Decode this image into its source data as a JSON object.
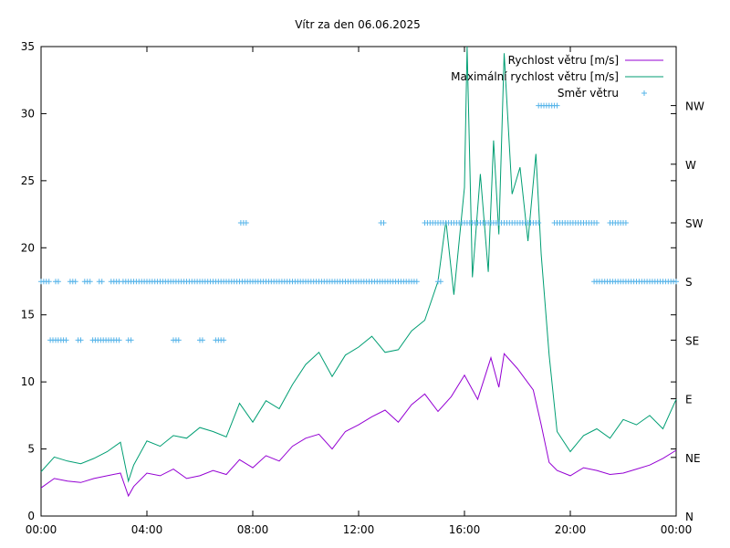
{
  "chart_data": {
    "type": "line",
    "title": "Vítr za den 06.06.2025",
    "xlabel": "",
    "ylabel": "",
    "x_ticks": [
      "00:00",
      "04:00",
      "08:00",
      "12:00",
      "16:00",
      "20:00",
      "00:00"
    ],
    "x_range_hours": [
      0,
      24
    ],
    "y_ticks": [
      "0",
      "5",
      "10",
      "15",
      "20",
      "25",
      "30",
      "35"
    ],
    "ylim": [
      0,
      35
    ],
    "y2_ticks": [
      "N",
      "NE",
      "E",
      "SE",
      "S",
      "SW",
      "W",
      "NW"
    ],
    "grid": false,
    "legend_position": "top-right",
    "series": [
      {
        "name": "Rychlost větru [m/s]",
        "style": "line",
        "color": "#9400d3",
        "x": [
          0,
          0.5,
          1,
          1.5,
          2,
          2.5,
          3,
          3.3,
          3.5,
          4,
          4.5,
          5,
          5.5,
          6,
          6.5,
          7,
          7.5,
          8,
          8.5,
          9,
          9.5,
          10,
          10.5,
          11,
          11.5,
          12,
          12.5,
          13,
          13.5,
          14,
          14.5,
          15,
          15.5,
          16,
          16.5,
          17,
          17.3,
          17.5,
          18,
          18.3,
          18.6,
          18.9,
          19.2,
          19.5,
          20,
          20.5,
          21,
          21.5,
          22,
          22.5,
          23,
          23.5,
          24
        ],
        "y": [
          2.1,
          2.8,
          2.6,
          2.5,
          2.8,
          3.0,
          3.2,
          1.5,
          2.2,
          3.2,
          3.0,
          3.5,
          2.8,
          3.0,
          3.4,
          3.1,
          4.2,
          3.6,
          4.5,
          4.1,
          5.2,
          5.8,
          6.1,
          5.0,
          6.3,
          6.8,
          7.4,
          7.9,
          7.0,
          8.3,
          9.1,
          7.8,
          8.9,
          10.5,
          8.7,
          11.8,
          9.6,
          12.1,
          11.0,
          10.2,
          9.4,
          6.8,
          4.0,
          3.4,
          3.0,
          3.6,
          3.4,
          3.1,
          3.2,
          3.5,
          3.8,
          4.3,
          4.9
        ]
      },
      {
        "name": "Maximální rychlost větru [m/s]",
        "style": "line",
        "color": "#009e73",
        "x": [
          0,
          0.5,
          1,
          1.5,
          2,
          2.5,
          3,
          3.3,
          3.5,
          4,
          4.5,
          5,
          5.5,
          6,
          6.5,
          7,
          7.5,
          8,
          8.5,
          9,
          9.5,
          10,
          10.5,
          11,
          11.5,
          12,
          12.5,
          13,
          13.5,
          14,
          14.5,
          15,
          15.3,
          15.6,
          16,
          16.1,
          16.3,
          16.6,
          16.9,
          17.1,
          17.3,
          17.5,
          17.8,
          18.1,
          18.4,
          18.7,
          18.9,
          19.2,
          19.5,
          20,
          20.5,
          21,
          21.5,
          22,
          22.5,
          23,
          23.5,
          24
        ],
        "y": [
          3.3,
          4.4,
          4.1,
          3.9,
          4.3,
          4.8,
          5.5,
          2.6,
          3.8,
          5.6,
          5.2,
          6.0,
          5.8,
          6.6,
          6.3,
          5.9,
          8.4,
          7.0,
          8.6,
          8.0,
          9.8,
          11.3,
          12.2,
          10.4,
          12.0,
          12.6,
          13.4,
          12.2,
          12.4,
          13.8,
          14.6,
          17.5,
          22.0,
          16.5,
          24.5,
          35.0,
          17.8,
          25.5,
          18.2,
          28.0,
          21.0,
          34.5,
          24.0,
          26.0,
          20.5,
          27.0,
          19.5,
          12.0,
          6.3,
          4.8,
          6.0,
          6.5,
          5.8,
          7.2,
          6.8,
          7.5,
          6.5,
          8.7
        ]
      },
      {
        "name": "Směr větru",
        "style": "points",
        "color": "#56b4e9",
        "runs": [
          {
            "dir": "S",
            "from": 0.0,
            "to": 0.3
          },
          {
            "dir": "S",
            "from": 0.55,
            "to": 0.65
          },
          {
            "dir": "SE",
            "from": 0.35,
            "to": 1.0
          },
          {
            "dir": "S",
            "from": 1.1,
            "to": 1.35
          },
          {
            "dir": "SE",
            "from": 1.4,
            "to": 1.55
          },
          {
            "dir": "S",
            "from": 1.65,
            "to": 1.9
          },
          {
            "dir": "SE",
            "from": 1.95,
            "to": 2.4
          },
          {
            "dir": "S",
            "from": 2.2,
            "to": 2.35
          },
          {
            "dir": "SE",
            "from": 2.45,
            "to": 3.0
          },
          {
            "dir": "S",
            "from": 2.65,
            "to": 3.0
          },
          {
            "dir": "S",
            "from": 3.1,
            "to": 14.2
          },
          {
            "dir": "SE",
            "from": 3.3,
            "to": 3.45
          },
          {
            "dir": "SE",
            "from": 5.0,
            "to": 5.2
          },
          {
            "dir": "SE",
            "from": 6.0,
            "to": 6.1
          },
          {
            "dir": "SE",
            "from": 6.6,
            "to": 6.9
          },
          {
            "dir": "SW",
            "from": 7.55,
            "to": 7.75
          },
          {
            "dir": "SW",
            "from": 12.85,
            "to": 12.95
          },
          {
            "dir": "S",
            "from": 15.0,
            "to": 15.1
          },
          {
            "dir": "SW",
            "from": 14.5,
            "to": 18.8
          },
          {
            "dir": "NW",
            "from": 18.8,
            "to": 19.5
          },
          {
            "dir": "SW",
            "from": 19.4,
            "to": 21.0
          },
          {
            "dir": "S",
            "from": 20.9,
            "to": 24.0
          },
          {
            "dir": "SW",
            "from": 21.5,
            "to": 22.1
          }
        ]
      }
    ]
  }
}
